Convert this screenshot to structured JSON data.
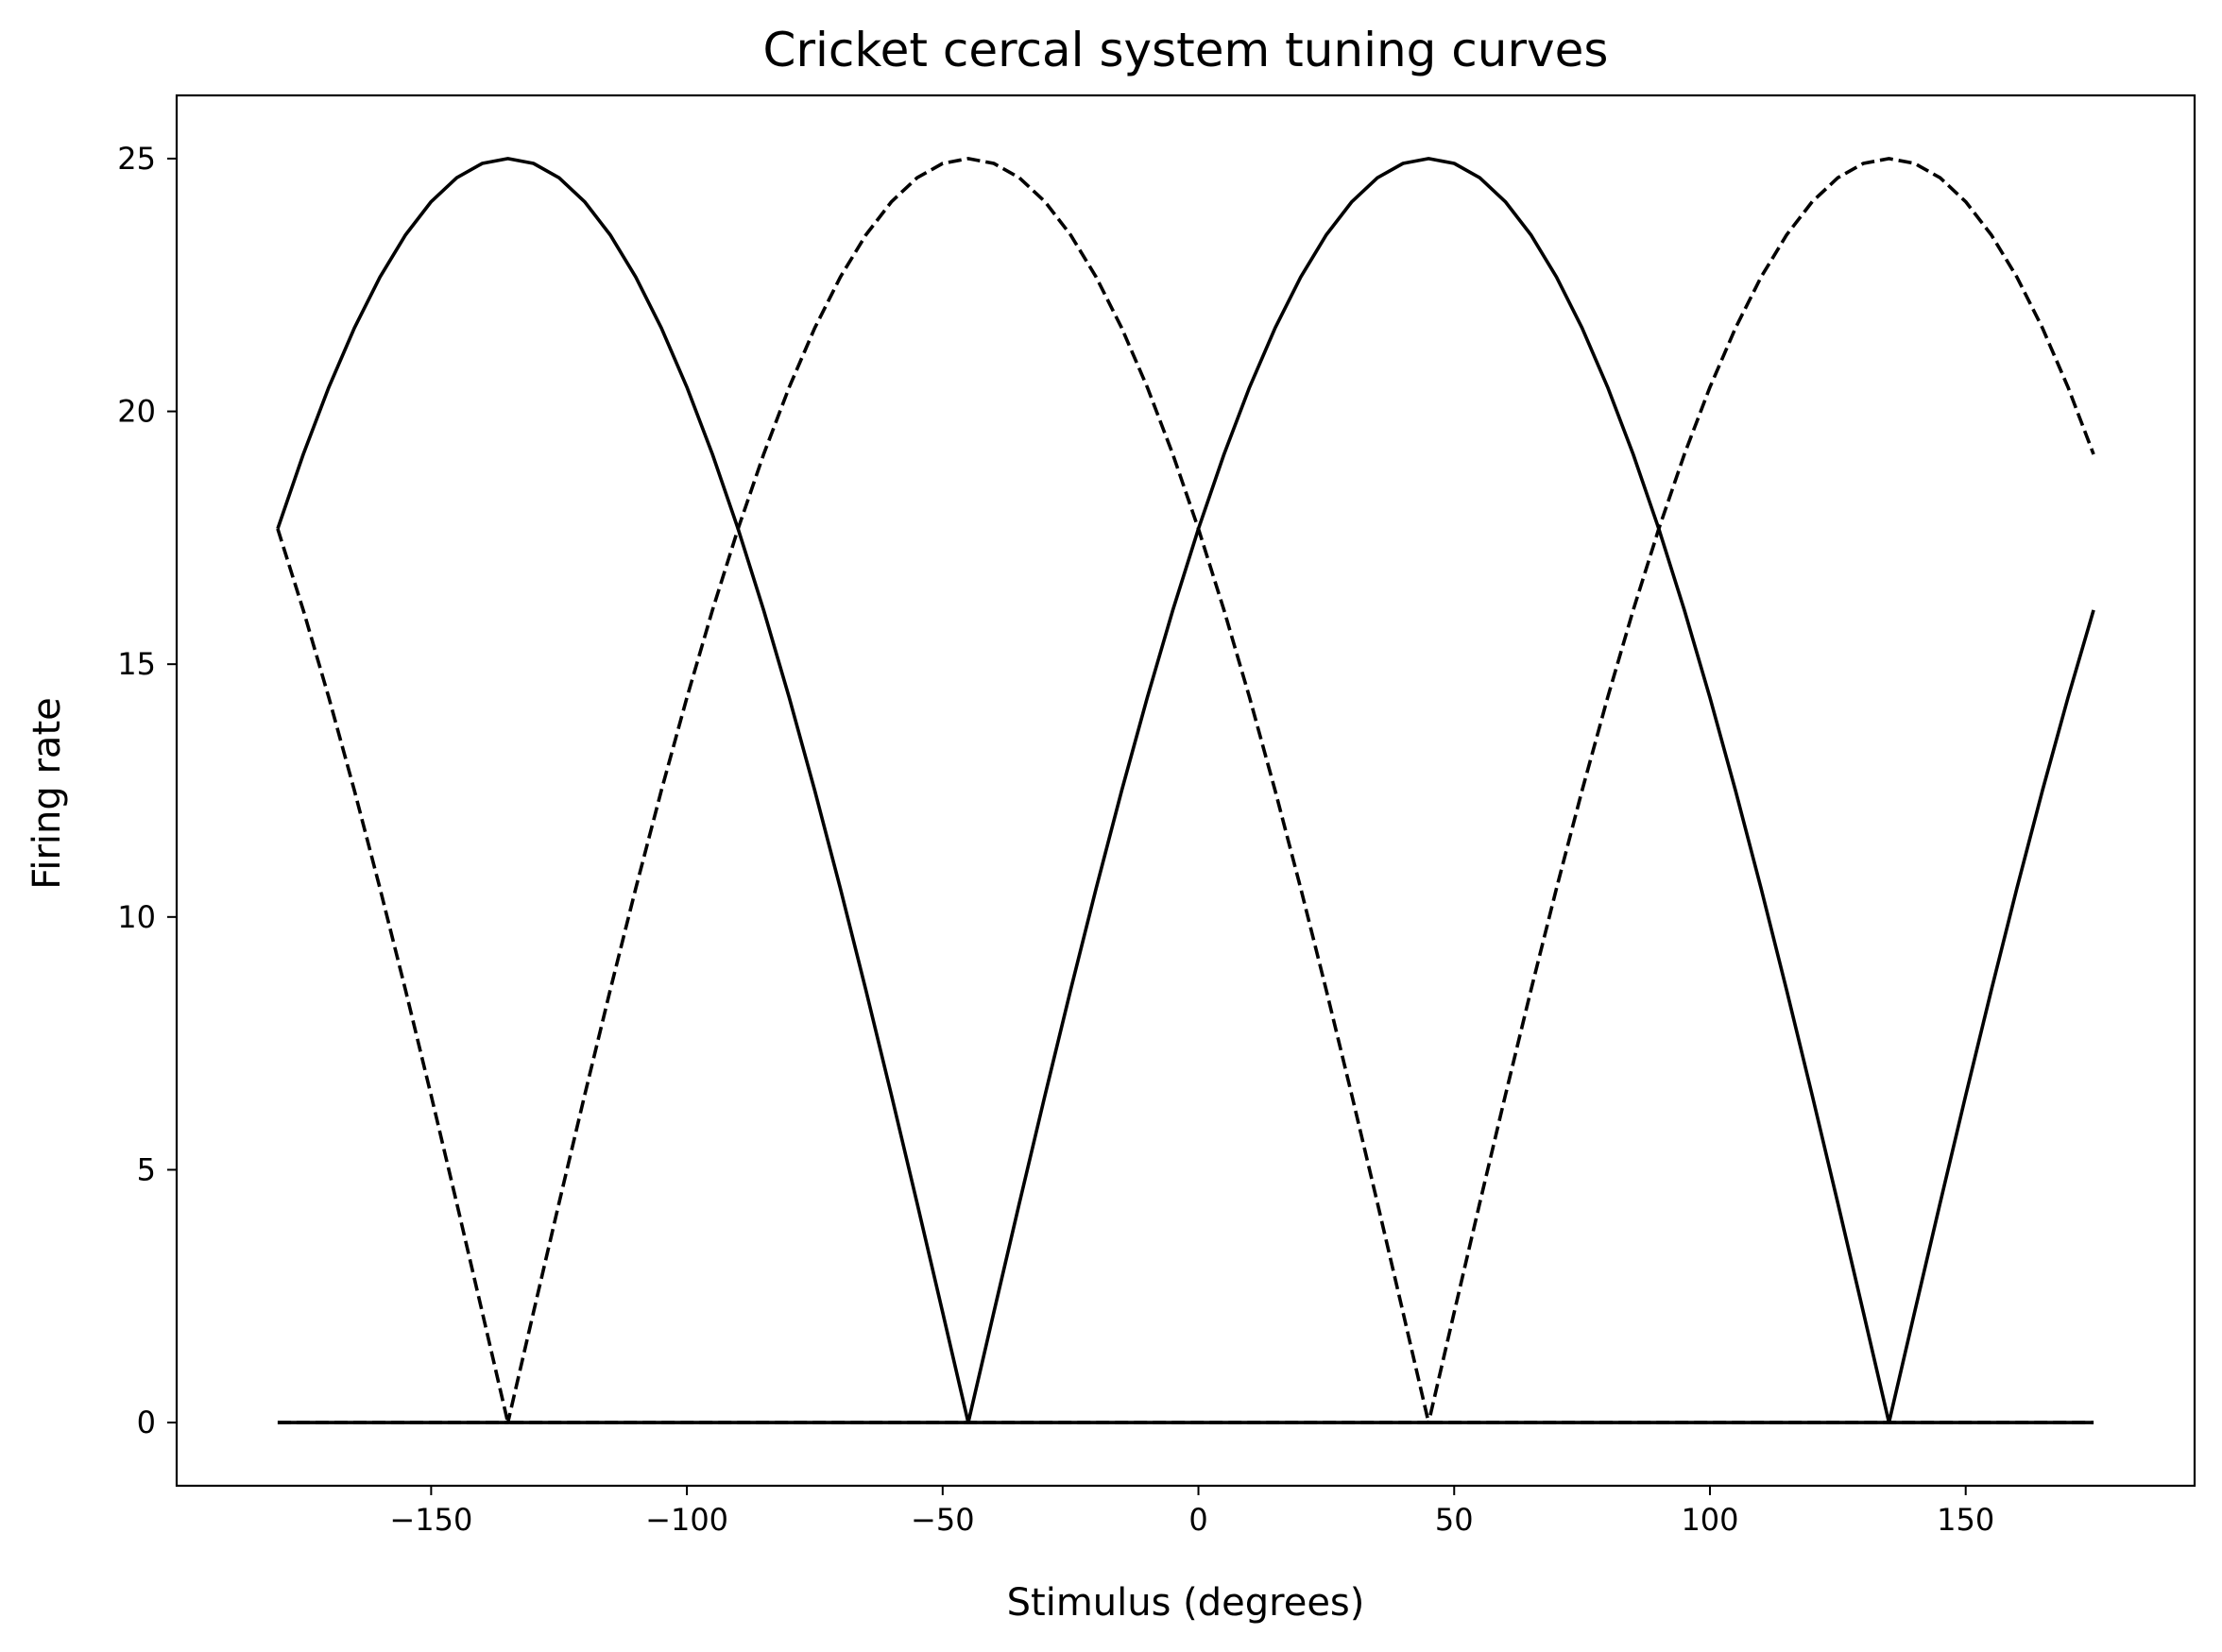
{
  "chart_data": {
    "type": "line",
    "title": "Cricket cercal system tuning curves",
    "xlabel": "Stimulus (degrees)",
    "ylabel": "Firing rate",
    "xlim": [
      -199.75,
      194.75
    ],
    "ylim": [
      -1.25,
      26.25
    ],
    "xticks": [
      -150,
      -100,
      -50,
      0,
      50,
      100,
      150
    ],
    "xtick_labels": [
      "−150",
      "−100",
      "−50",
      "0",
      "50",
      "100",
      "150"
    ],
    "yticks": [
      0,
      5,
      10,
      15,
      20,
      25
    ],
    "ytick_labels": [
      "0",
      "5",
      "10",
      "15",
      "20",
      "25"
    ],
    "grid": false,
    "legend": false,
    "x_range": [
      -180,
      175
    ],
    "x_step": 5,
    "series": [
      {
        "preferred_deg": 45,
        "peak": 25,
        "line_style": "solid",
        "color": "#000000"
      },
      {
        "preferred_deg": 135,
        "peak": 25,
        "line_style": "dashed",
        "color": "#000000"
      },
      {
        "preferred_deg": -135,
        "peak": 25,
        "line_style": "solid",
        "color": "#000000"
      },
      {
        "preferred_deg": -45,
        "peak": 25,
        "line_style": "dashed",
        "color": "#000000"
      }
    ]
  }
}
